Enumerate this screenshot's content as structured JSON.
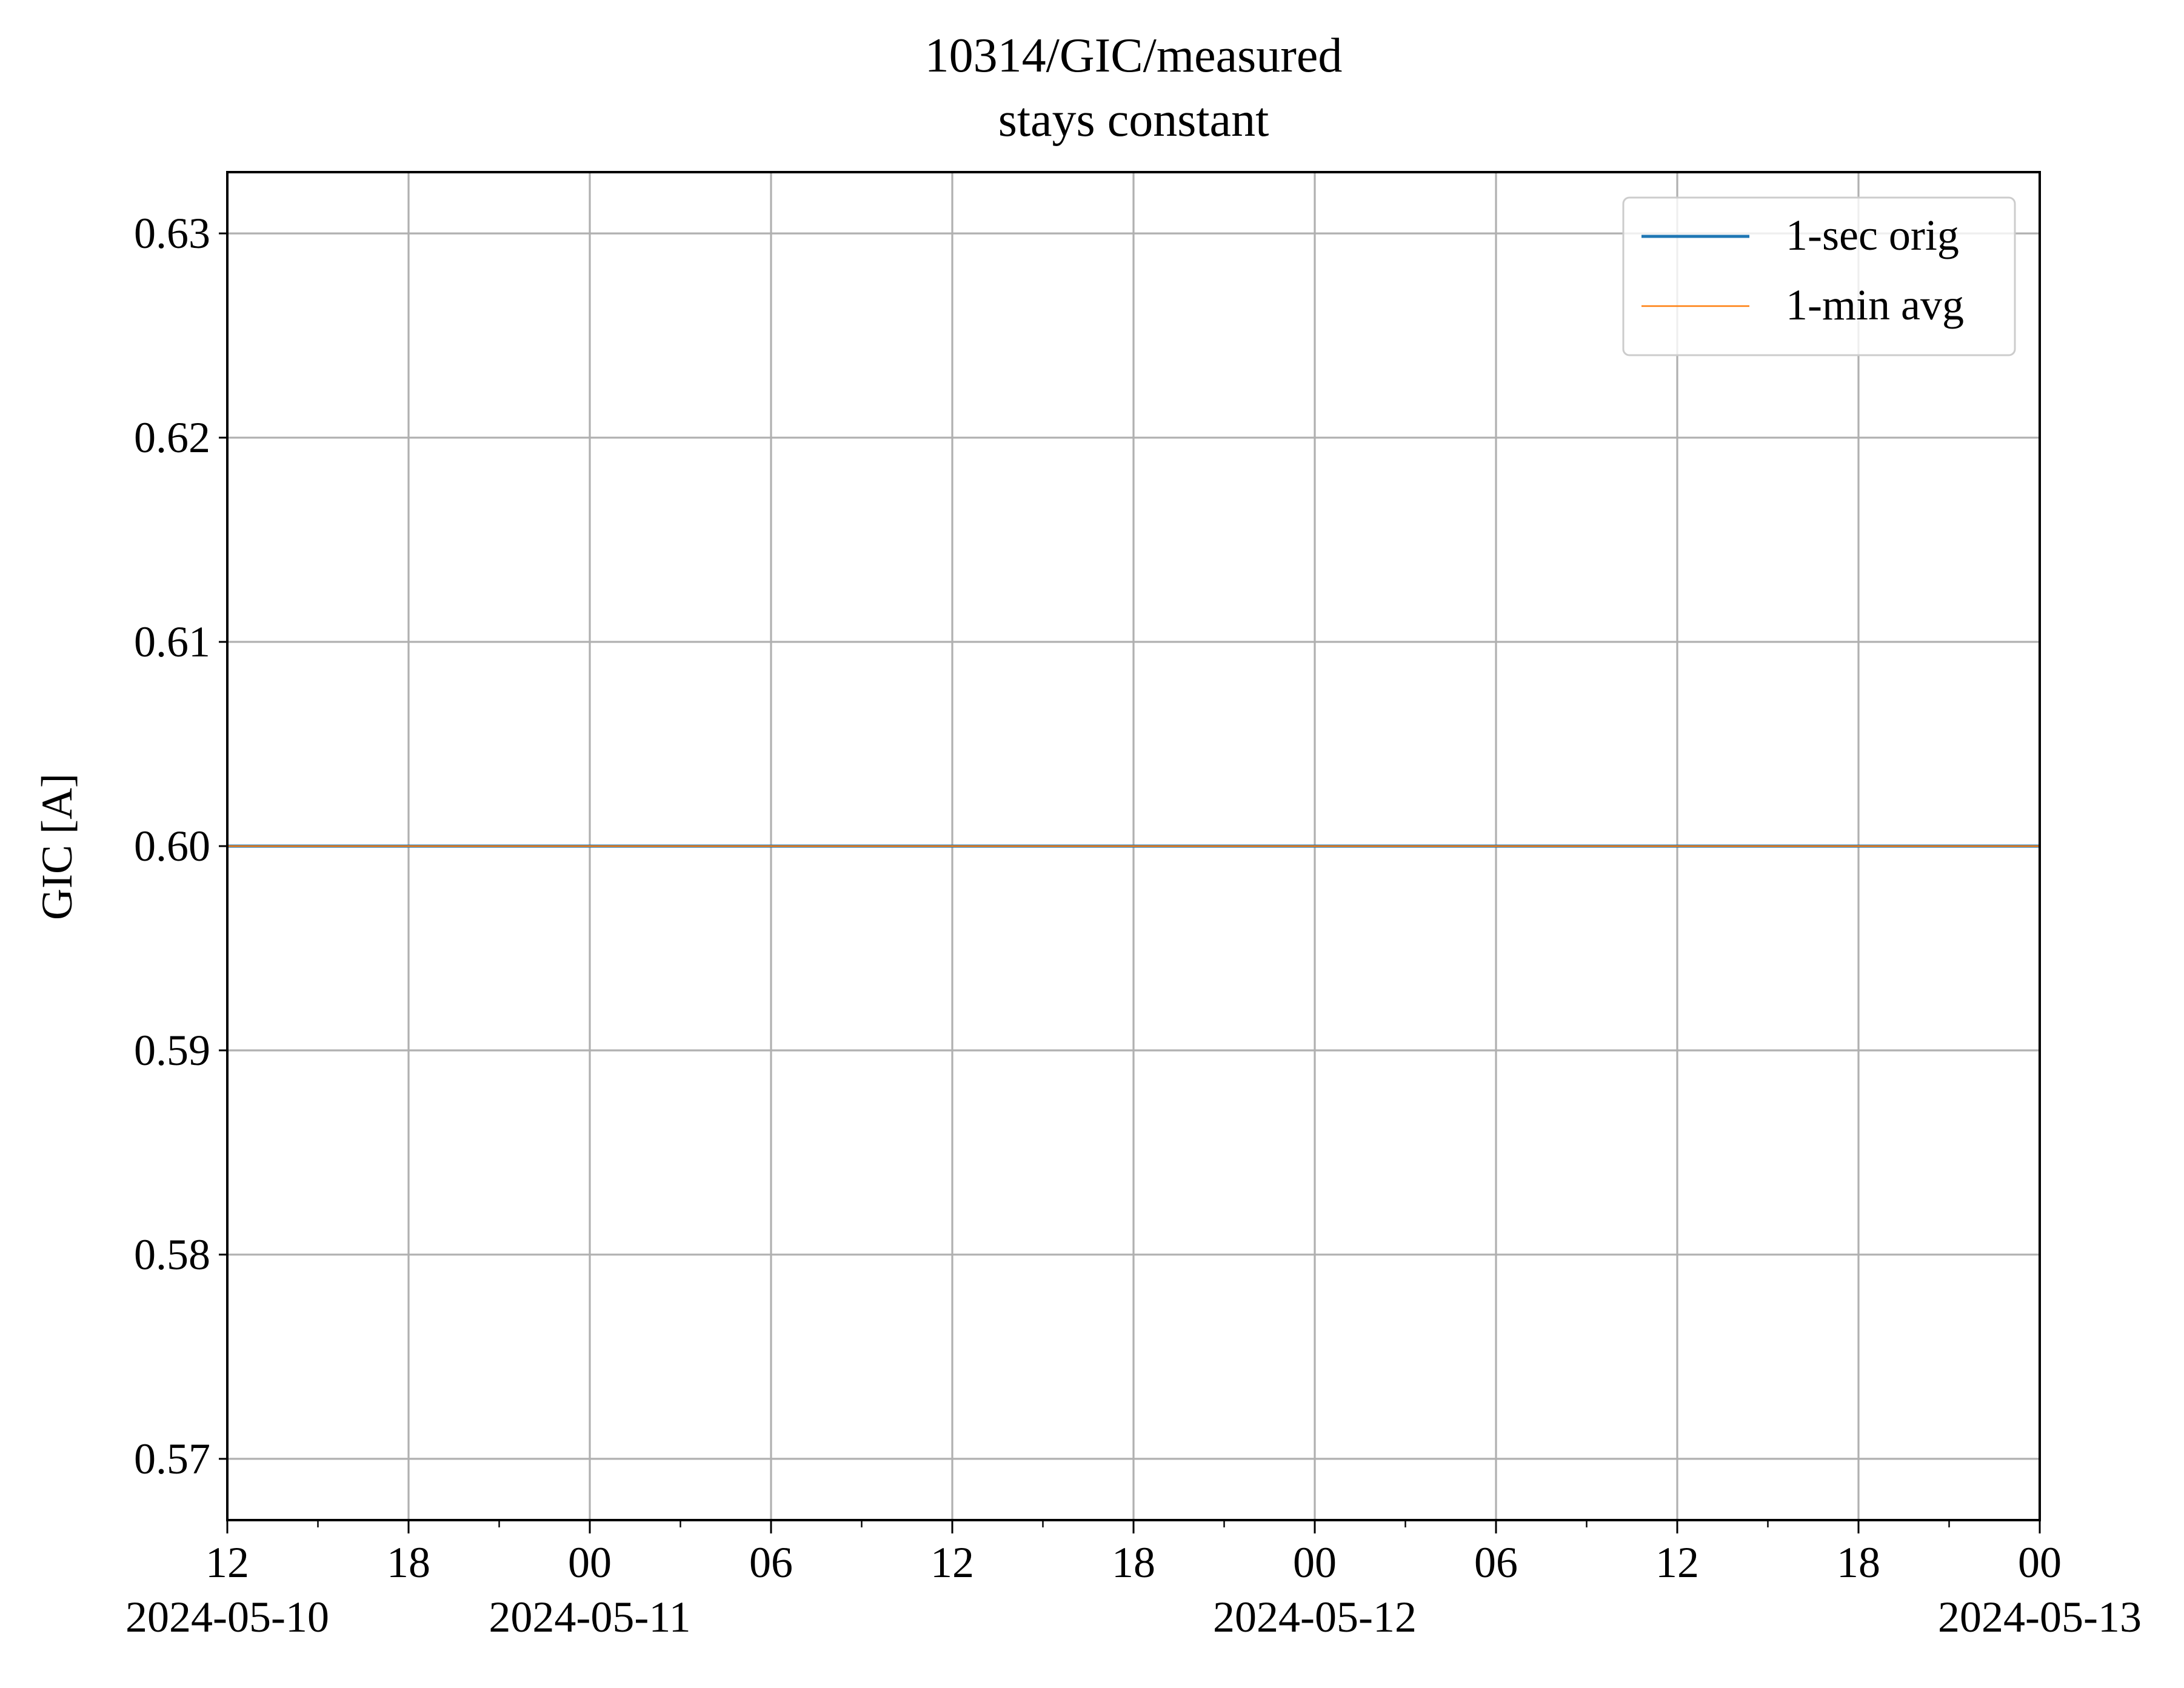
{
  "chart_data": {
    "type": "line",
    "title": "10314/GIC/measured",
    "subtitle": "stays constant",
    "xlabel": "",
    "ylabel": "GIC [A]",
    "xlim": [
      "2024-05-10T12:00",
      "2024-05-13T00:00"
    ],
    "ylim": [
      0.567,
      0.633
    ],
    "grid": true,
    "legend_position": "top-right",
    "x_tick_labels": [
      {
        "t": "2024-05-10T12:00",
        "label": "12",
        "date_label": "2024-05-10"
      },
      {
        "t": "2024-05-10T18:00",
        "label": "18",
        "date_label": ""
      },
      {
        "t": "2024-05-11T00:00",
        "label": "00",
        "date_label": "2024-05-11"
      },
      {
        "t": "2024-05-11T06:00",
        "label": "06",
        "date_label": ""
      },
      {
        "t": "2024-05-11T12:00",
        "label": "12",
        "date_label": ""
      },
      {
        "t": "2024-05-11T18:00",
        "label": "18",
        "date_label": ""
      },
      {
        "t": "2024-05-12T00:00",
        "label": "00",
        "date_label": "2024-05-12"
      },
      {
        "t": "2024-05-12T06:00",
        "label": "06",
        "date_label": ""
      },
      {
        "t": "2024-05-12T12:00",
        "label": "12",
        "date_label": ""
      },
      {
        "t": "2024-05-12T18:00",
        "label": "18",
        "date_label": ""
      },
      {
        "t": "2024-05-13T00:00",
        "label": "00",
        "date_label": "2024-05-13"
      }
    ],
    "y_ticks": [
      0.57,
      0.58,
      0.59,
      0.6,
      0.61,
      0.62,
      0.63
    ],
    "y_tick_labels": [
      "0.57",
      "0.58",
      "0.59",
      "0.60",
      "0.61",
      "0.62",
      "0.63"
    ],
    "series": [
      {
        "name": "1-sec orig",
        "color": "#1f77b4",
        "x": [
          "2024-05-10T12:00",
          "2024-05-13T00:00"
        ],
        "y": [
          0.6,
          0.6
        ]
      },
      {
        "name": "1-min avg",
        "color": "#ff7f0e",
        "x": [
          "2024-05-10T12:00",
          "2024-05-13T00:00"
        ],
        "y": [
          0.6,
          0.6
        ]
      }
    ]
  }
}
